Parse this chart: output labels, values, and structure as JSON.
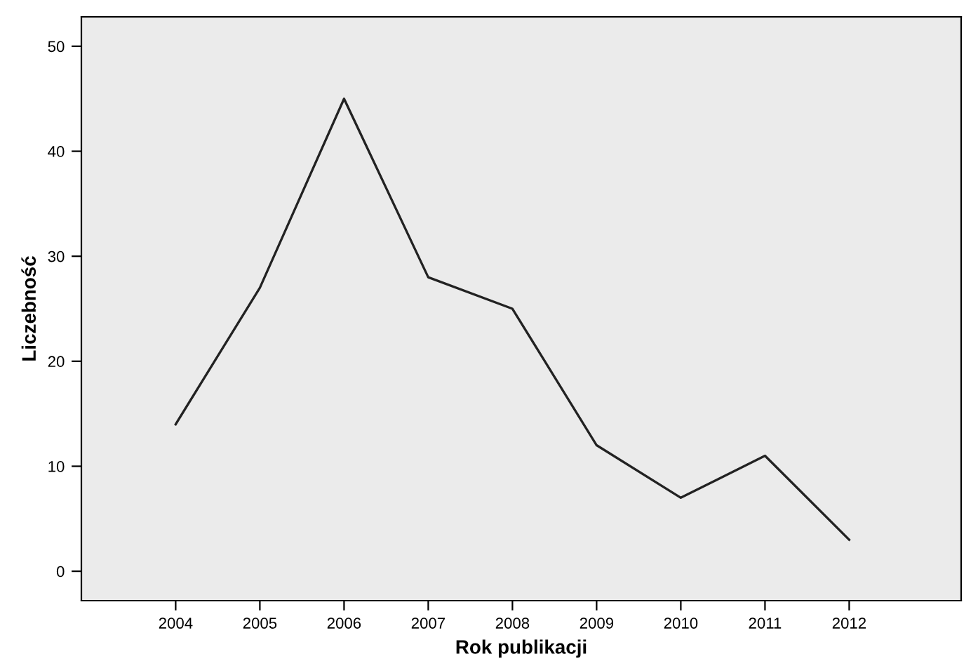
{
  "chart_data": {
    "type": "line",
    "xlabel": "Rok publikacji",
    "ylabel": "Liczebność",
    "categories": [
      "2004",
      "2005",
      "2006",
      "2007",
      "2008",
      "2009",
      "2010",
      "2011",
      "2012"
    ],
    "series": [
      {
        "color": "#222222",
        "values": [
          14,
          27,
          45,
          28,
          25,
          12,
          7,
          11,
          3
        ]
      }
    ],
    "ylim": [
      -2.8,
      52.8
    ],
    "yticks": [
      0,
      10,
      20,
      30,
      40,
      50
    ],
    "grid": false,
    "legend": false,
    "marker": "none",
    "line_style": "solid"
  }
}
